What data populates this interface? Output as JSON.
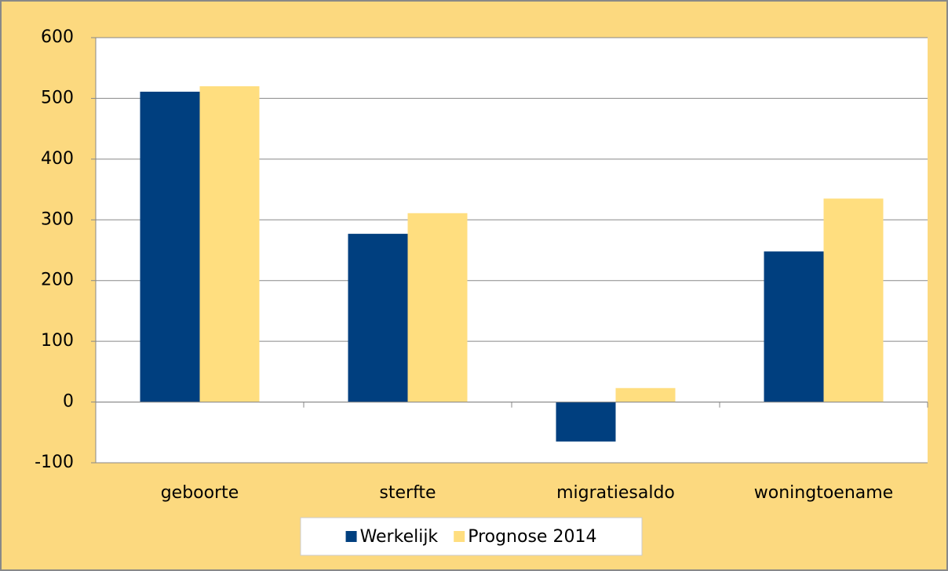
{
  "chart_data": {
    "type": "bar",
    "categories": [
      "geboorte",
      "sterfte",
      "migratiesaldo",
      "woningtoename"
    ],
    "series": [
      {
        "name": "Werkelijk",
        "color": "#003f7f",
        "values": [
          511,
          277,
          -65,
          248
        ]
      },
      {
        "name": "Prognose 2014",
        "color": "#ffde7f",
        "values": [
          520,
          311,
          23,
          335
        ]
      }
    ],
    "ylim": [
      -100,
      600
    ],
    "yticks": [
      -100,
      0,
      100,
      200,
      300,
      400,
      500,
      600
    ],
    "grid": true,
    "legend": "bottom"
  }
}
